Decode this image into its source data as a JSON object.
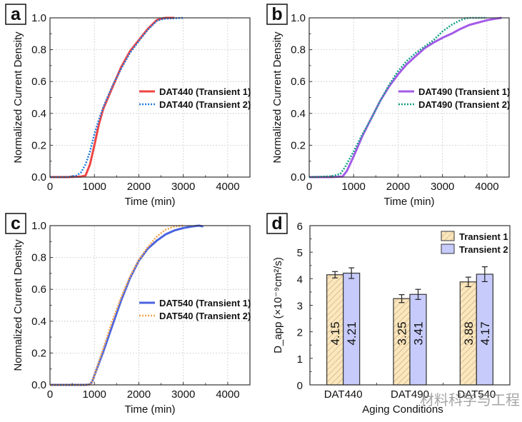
{
  "watermark": "材料科学与工程",
  "colors": {
    "DAT440_T1": "#f04545",
    "DAT440_T2": "#1f7be0",
    "DAT490_T1": "#a35be8",
    "DAT490_T2": "#13a085",
    "DAT540_T1": "#4a63e0",
    "DAT540_T2": "#f7a54a",
    "bar_T1": "#fbe6bd",
    "bar_T1_hatch": "#b89a6a",
    "bar_T2": "#c6cbfb"
  },
  "chart_data": [
    {
      "panel": "a",
      "type": "line",
      "title": "",
      "xlabel": "Time (min)",
      "ylabel": "Normalized Current Density",
      "xlim": [
        0,
        4500
      ],
      "ylim": [
        0,
        1.0
      ],
      "xticks": [
        "0",
        "1000",
        "2000",
        "3000",
        "4000"
      ],
      "yticks": [
        "0.0",
        "0.2",
        "0.4",
        "0.6",
        "0.8",
        "1.0"
      ],
      "grid": true,
      "legend_position": "center-right",
      "series": [
        {
          "name": "DAT440 (Transient 1)",
          "style": "solid",
          "color_key": "DAT440_T1",
          "x": [
            0,
            400,
            700,
            800,
            900,
            1000,
            1100,
            1200,
            1400,
            1600,
            1800,
            2000,
            2200,
            2400,
            2500,
            2600,
            2800
          ],
          "y": [
            0.0,
            0.0,
            0.003,
            0.01,
            0.08,
            0.2,
            0.33,
            0.43,
            0.56,
            0.69,
            0.79,
            0.86,
            0.93,
            0.985,
            0.995,
            1.0,
            1.0
          ]
        },
        {
          "name": "DAT440 (Transient 2)",
          "style": "dotted",
          "color_key": "DAT440_T2",
          "x": [
            0,
            400,
            600,
            700,
            800,
            900,
            1000,
            1100,
            1200,
            1400,
            1600,
            1800,
            2000,
            2200,
            2400,
            2500,
            2600,
            3000
          ],
          "y": [
            0.0,
            0.0,
            0.01,
            0.03,
            0.08,
            0.16,
            0.27,
            0.36,
            0.44,
            0.57,
            0.68,
            0.78,
            0.855,
            0.925,
            0.98,
            0.99,
            0.995,
            1.0
          ]
        }
      ]
    },
    {
      "panel": "b",
      "type": "line",
      "title": "",
      "xlabel": "Time (min)",
      "ylabel": "Normalized Current Density",
      "xlim": [
        0,
        4500
      ],
      "ylim": [
        0,
        1.0
      ],
      "xticks": [
        "0",
        "1000",
        "2000",
        "3000",
        "4000"
      ],
      "yticks": [
        "0.0",
        "0.2",
        "0.4",
        "0.6",
        "0.8",
        "1.0"
      ],
      "grid": true,
      "legend_position": "center-right",
      "series": [
        {
          "name": "DAT490 (Transient 1)",
          "style": "solid",
          "color_key": "DAT490_T1",
          "x": [
            0,
            500,
            750,
            850,
            1000,
            1200,
            1400,
            1600,
            1800,
            2000,
            2200,
            2400,
            2600,
            2800,
            3000,
            3200,
            3400,
            3600,
            3800,
            4000,
            4200,
            4330
          ],
          "y": [
            0.0,
            0.0,
            0.003,
            0.04,
            0.13,
            0.26,
            0.37,
            0.48,
            0.57,
            0.645,
            0.71,
            0.76,
            0.81,
            0.845,
            0.875,
            0.9,
            0.93,
            0.955,
            0.97,
            0.985,
            0.995,
            1.0
          ]
        },
        {
          "name": "DAT490 (Transient 2)",
          "style": "dotted",
          "color_key": "DAT490_T2",
          "x": [
            0,
            500,
            700,
            800,
            1000,
            1200,
            1400,
            1600,
            1800,
            2000,
            2200,
            2400,
            2600,
            2800,
            3000,
            3200,
            3400,
            3500,
            3600,
            4000
          ],
          "y": [
            0.0,
            0.005,
            0.02,
            0.06,
            0.16,
            0.27,
            0.37,
            0.48,
            0.58,
            0.665,
            0.73,
            0.78,
            0.82,
            0.86,
            0.915,
            0.955,
            0.985,
            0.995,
            1.0,
            1.0
          ]
        }
      ]
    },
    {
      "panel": "c",
      "type": "line",
      "title": "",
      "xlabel": "Time (min)",
      "ylabel": "Normalized Current Density",
      "xlim": [
        0,
        4500
      ],
      "ylim": [
        0,
        1.0
      ],
      "xticks": [
        "0",
        "1000",
        "2000",
        "3000",
        "4000"
      ],
      "yticks": [
        "0.0",
        "0.2",
        "0.4",
        "0.6",
        "0.8",
        "1.0"
      ],
      "grid": true,
      "legend_position": "center-right",
      "series": [
        {
          "name": "DAT540 (Transient 1)",
          "style": "solid",
          "color_key": "DAT540_T1",
          "x": [
            0,
            800,
            900,
            950,
            1000,
            1200,
            1400,
            1600,
            1800,
            2000,
            2200,
            2400,
            2600,
            2800,
            3000,
            3200,
            3350,
            3450
          ],
          "y": [
            0.0,
            0.0,
            0.003,
            0.02,
            0.06,
            0.21,
            0.37,
            0.53,
            0.67,
            0.78,
            0.855,
            0.905,
            0.945,
            0.97,
            0.985,
            0.995,
            1.0,
            0.995
          ]
        },
        {
          "name": "DAT540 (Transient 2)",
          "style": "dotted",
          "color_key": "DAT540_T2",
          "x": [
            0,
            800,
            900,
            950,
            1000,
            1200,
            1400,
            1600,
            1800,
            2000,
            2200,
            2400,
            2600,
            2800,
            3000
          ],
          "y": [
            0.0,
            0.0,
            0.003,
            0.02,
            0.06,
            0.23,
            0.4,
            0.55,
            0.68,
            0.785,
            0.865,
            0.93,
            0.975,
            0.995,
            1.0
          ]
        }
      ]
    },
    {
      "panel": "d",
      "type": "bar",
      "title": "",
      "xlabel": "Aging Conditions",
      "ylabel": "D_app (×10⁻⁹cm²/s)",
      "ylim": [
        0,
        6
      ],
      "yticks": [
        "0",
        "1",
        "2",
        "3",
        "4",
        "5",
        "6"
      ],
      "grid": false,
      "legend_position": "top-right",
      "categories": [
        "DAT440",
        "DAT490",
        "DAT540"
      ],
      "series": [
        {
          "name": "Transient 1",
          "color_key": "bar_T1",
          "hatch": true,
          "values": [
            4.15,
            3.25,
            3.88
          ],
          "errors": [
            0.12,
            0.15,
            0.18
          ],
          "labels": [
            "4.15",
            "3.25",
            "3.88"
          ]
        },
        {
          "name": "Transient 2",
          "color_key": "bar_T2",
          "hatch": false,
          "values": [
            4.21,
            3.41,
            4.17
          ],
          "errors": [
            0.2,
            0.19,
            0.28
          ],
          "labels": [
            "4.21",
            "3.41",
            "4.17"
          ]
        }
      ]
    }
  ]
}
